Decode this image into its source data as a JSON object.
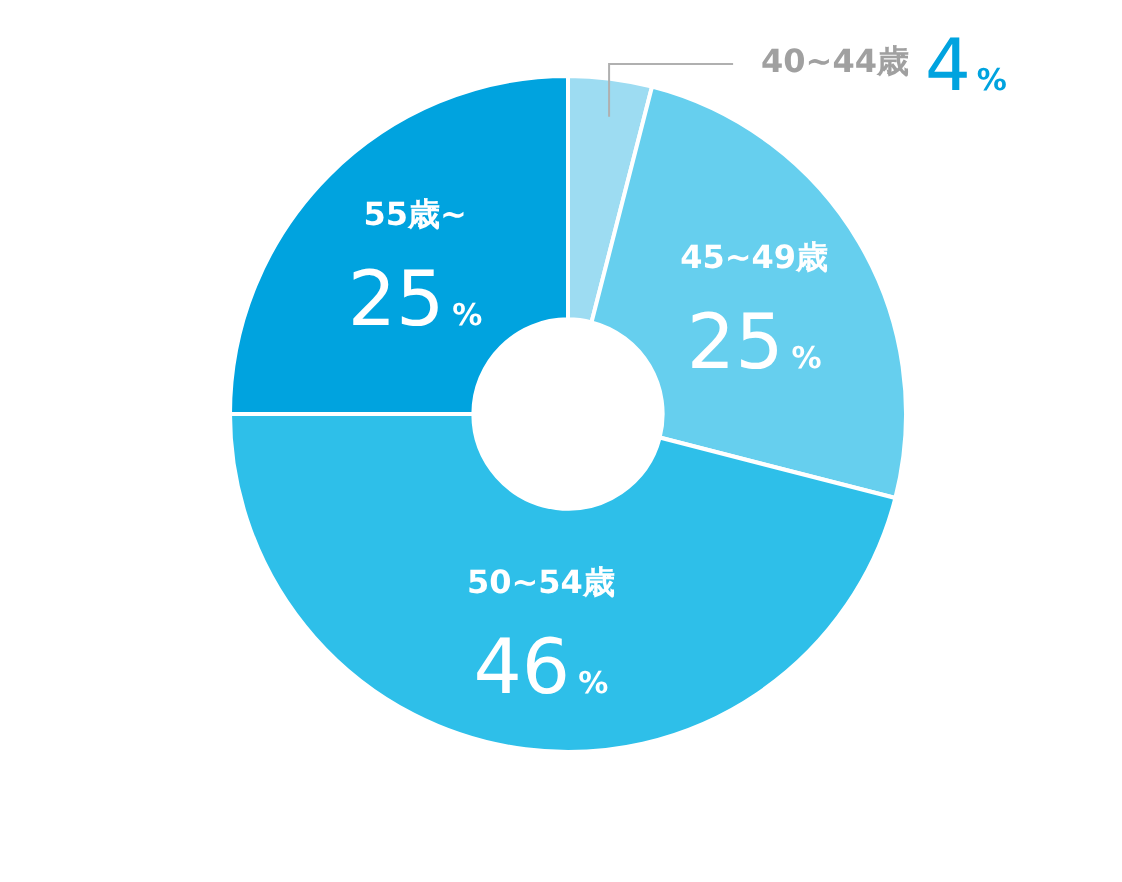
{
  "chart_data": {
    "type": "donut",
    "categories": [
      "40~44歳",
      "45~49歳",
      "50~54歳",
      "55歳~"
    ],
    "values": [
      4,
      25,
      46,
      25
    ],
    "colors": [
      "#9ddcf2",
      "#66cfee",
      "#2ebfe9",
      "#00a3df"
    ],
    "value_labels": [
      "4%",
      "25%",
      "46%",
      "25%"
    ],
    "legend": false
  }
}
